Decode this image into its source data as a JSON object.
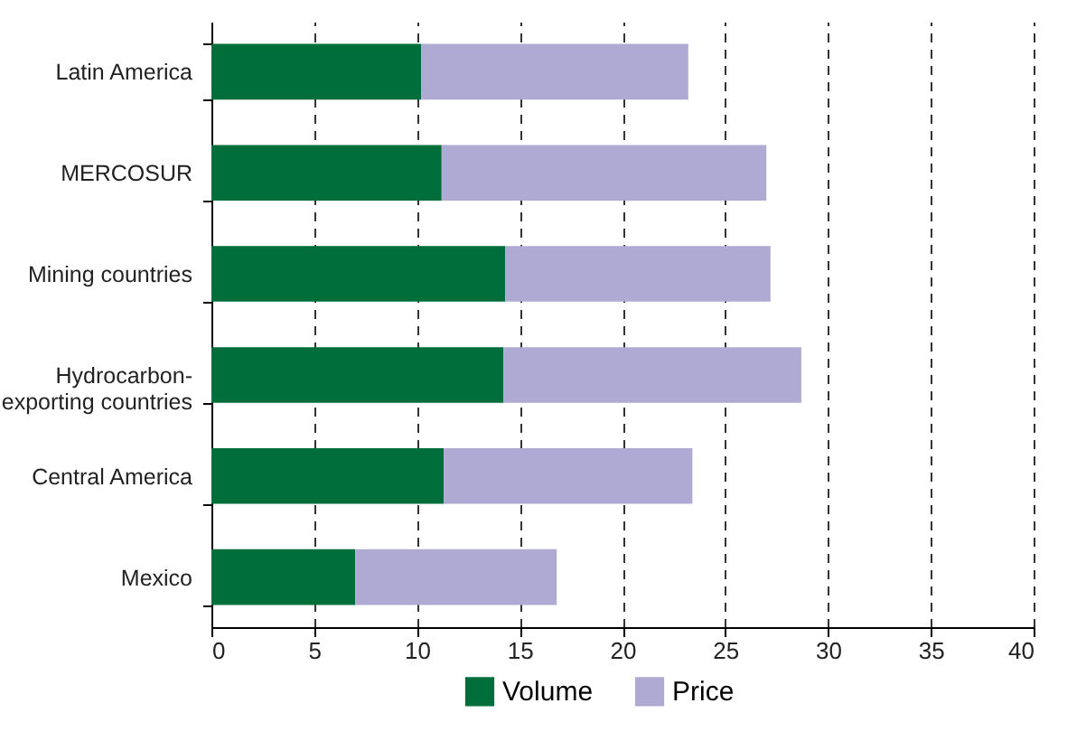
{
  "chart_data": {
    "type": "bar",
    "orientation": "horizontal",
    "stacked": true,
    "categories": [
      "Latin America",
      "MERCOSUR",
      "Mining countries",
      "Hydrocarbon-exporting countries",
      "Central America",
      "Mexico"
    ],
    "series": [
      {
        "name": "Volume",
        "color": "#006e3a",
        "values": [
          10.2,
          11.2,
          14.3,
          14.2,
          11.3,
          7.0
        ]
      },
      {
        "name": "Price",
        "color": "#afaad4",
        "values": [
          13.0,
          15.8,
          12.9,
          14.5,
          12.1,
          9.8
        ]
      }
    ],
    "xlim": [
      0,
      40
    ],
    "xticks": [
      0,
      5,
      10,
      15,
      20,
      25,
      30,
      35,
      40
    ],
    "grid": "x",
    "legend": "bottom"
  }
}
